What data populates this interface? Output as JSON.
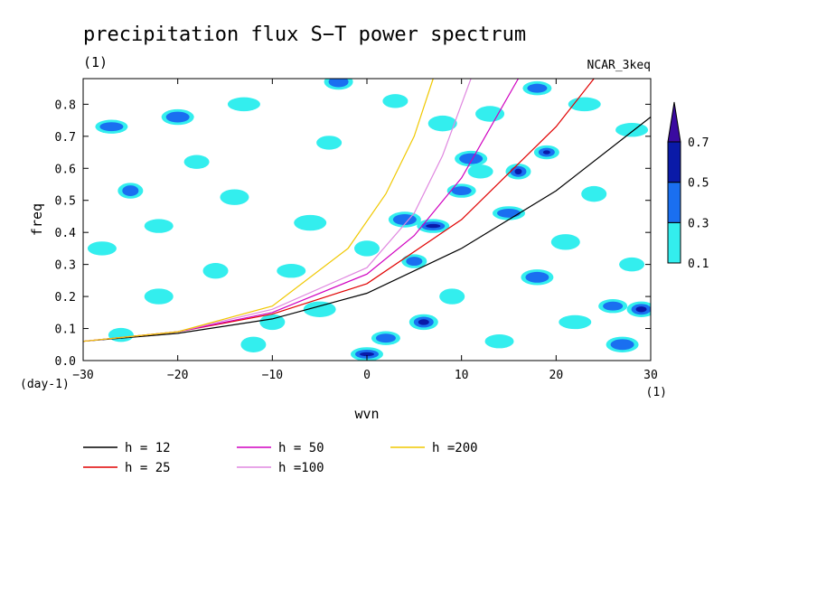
{
  "chart_data": {
    "type": "heatmap",
    "title": "precipitation flux S−T power spectrum",
    "subtitle_left": "(1)",
    "subtitle_right": "NCAR_3keq",
    "xlabel": "wvn",
    "ylabel": "freq",
    "x_unit": "(1)",
    "y_unit": "(day-1)",
    "xlim": [
      -30,
      30
    ],
    "ylim": [
      0,
      0.88
    ],
    "x_ticks": [
      -30,
      -20,
      -10,
      0,
      10,
      20,
      30
    ],
    "x_tick_labels": [
      "−30",
      "−20",
      "−10",
      "0",
      "10",
      "20",
      "30"
    ],
    "y_ticks": [
      0,
      0.1,
      0.2,
      0.3,
      0.4,
      0.5,
      0.6,
      0.7,
      0.8
    ],
    "y_tick_labels": [
      "0.0",
      "0.1",
      "0.2",
      "0.3",
      "0.4",
      "0.5",
      "0.6",
      "0.7",
      "0.8"
    ],
    "colorbar": {
      "levels": [
        "0.1",
        "0.3",
        "0.5",
        "0.7"
      ],
      "colors": [
        "#33eeee",
        "#1a6ff0",
        "#0a1aa8",
        "#3a0aa0"
      ]
    },
    "dispersion_curves": [
      {
        "label": "h = 12",
        "color": "#000000",
        "x": [
          -30,
          -20,
          -10,
          0,
          10,
          20,
          30
        ],
        "y": [
          0.06,
          0.085,
          0.13,
          0.21,
          0.35,
          0.53,
          0.76
        ]
      },
      {
        "label": "h = 25",
        "color": "#e00000",
        "x": [
          -30,
          -20,
          -10,
          0,
          10,
          20,
          24
        ],
        "y": [
          0.06,
          0.09,
          0.145,
          0.24,
          0.44,
          0.73,
          0.88
        ]
      },
      {
        "label": "h = 50",
        "color": "#d000c0",
        "x": [
          -30,
          -20,
          -10,
          0,
          5,
          10,
          16
        ],
        "y": [
          0.06,
          0.09,
          0.15,
          0.27,
          0.39,
          0.57,
          0.88
        ]
      },
      {
        "label": "h =100",
        "color": "#e088e0",
        "x": [
          -30,
          -20,
          -10,
          0,
          5,
          8,
          11
        ],
        "y": [
          0.06,
          0.09,
          0.16,
          0.29,
          0.46,
          0.64,
          0.88
        ]
      },
      {
        "label": "h =200",
        "color": "#f0c800",
        "x": [
          -30,
          -20,
          -10,
          -2,
          2,
          5,
          7
        ],
        "y": [
          0.06,
          0.09,
          0.17,
          0.35,
          0.52,
          0.7,
          0.88
        ]
      }
    ],
    "contour_blobs": [
      {
        "x": -26,
        "y": 0.08,
        "level": 0
      },
      {
        "x": -22,
        "y": 0.2,
        "level": 0
      },
      {
        "x": -27,
        "y": 0.73,
        "level": 1
      },
      {
        "x": -25,
        "y": 0.53,
        "level": 1
      },
      {
        "x": -22,
        "y": 0.42,
        "level": 0
      },
      {
        "x": -20,
        "y": 0.76,
        "level": 1
      },
      {
        "x": -18,
        "y": 0.62,
        "level": 0
      },
      {
        "x": -14,
        "y": 0.51,
        "level": 0
      },
      {
        "x": -13,
        "y": 0.8,
        "level": 0
      },
      {
        "x": -10,
        "y": 0.12,
        "level": 0
      },
      {
        "x": -8,
        "y": 0.28,
        "level": 0
      },
      {
        "x": -6,
        "y": 0.43,
        "level": 0
      },
      {
        "x": -4,
        "y": 0.68,
        "level": 0
      },
      {
        "x": -3,
        "y": 0.87,
        "level": 1
      },
      {
        "x": 0,
        "y": 0.02,
        "level": 2
      },
      {
        "x": 0,
        "y": 0.35,
        "level": 0
      },
      {
        "x": 2,
        "y": 0.07,
        "level": 1
      },
      {
        "x": 4,
        "y": 0.44,
        "level": 1
      },
      {
        "x": 5,
        "y": 0.31,
        "level": 1
      },
      {
        "x": 6,
        "y": 0.12,
        "level": 2
      },
      {
        "x": 7,
        "y": 0.42,
        "level": 2
      },
      {
        "x": 9,
        "y": 0.2,
        "level": 0
      },
      {
        "x": 10,
        "y": 0.53,
        "level": 1
      },
      {
        "x": 11,
        "y": 0.63,
        "level": 1
      },
      {
        "x": 12,
        "y": 0.59,
        "level": 0
      },
      {
        "x": 13,
        "y": 0.77,
        "level": 0
      },
      {
        "x": 15,
        "y": 0.46,
        "level": 1
      },
      {
        "x": 16,
        "y": 0.59,
        "level": 2
      },
      {
        "x": 18,
        "y": 0.85,
        "level": 1
      },
      {
        "x": 18,
        "y": 0.26,
        "level": 1
      },
      {
        "x": 19,
        "y": 0.65,
        "level": 2
      },
      {
        "x": 21,
        "y": 0.37,
        "level": 0
      },
      {
        "x": 22,
        "y": 0.12,
        "level": 0
      },
      {
        "x": 24,
        "y": 0.52,
        "level": 0
      },
      {
        "x": 26,
        "y": 0.17,
        "level": 1
      },
      {
        "x": 27,
        "y": 0.05,
        "level": 1
      },
      {
        "x": 28,
        "y": 0.3,
        "level": 0
      },
      {
        "x": 29,
        "y": 0.16,
        "level": 2
      },
      {
        "x": 28,
        "y": 0.72,
        "level": 0
      },
      {
        "x": -16,
        "y": 0.28,
        "level": 0
      },
      {
        "x": -28,
        "y": 0.35,
        "level": 0
      },
      {
        "x": -5,
        "y": 0.16,
        "level": 0
      },
      {
        "x": 3,
        "y": 0.81,
        "level": 0
      },
      {
        "x": 8,
        "y": 0.74,
        "level": 0
      },
      {
        "x": 23,
        "y": 0.8,
        "level": 0
      },
      {
        "x": -12,
        "y": 0.05,
        "level": 0
      },
      {
        "x": 14,
        "y": 0.06,
        "level": 0
      }
    ]
  }
}
